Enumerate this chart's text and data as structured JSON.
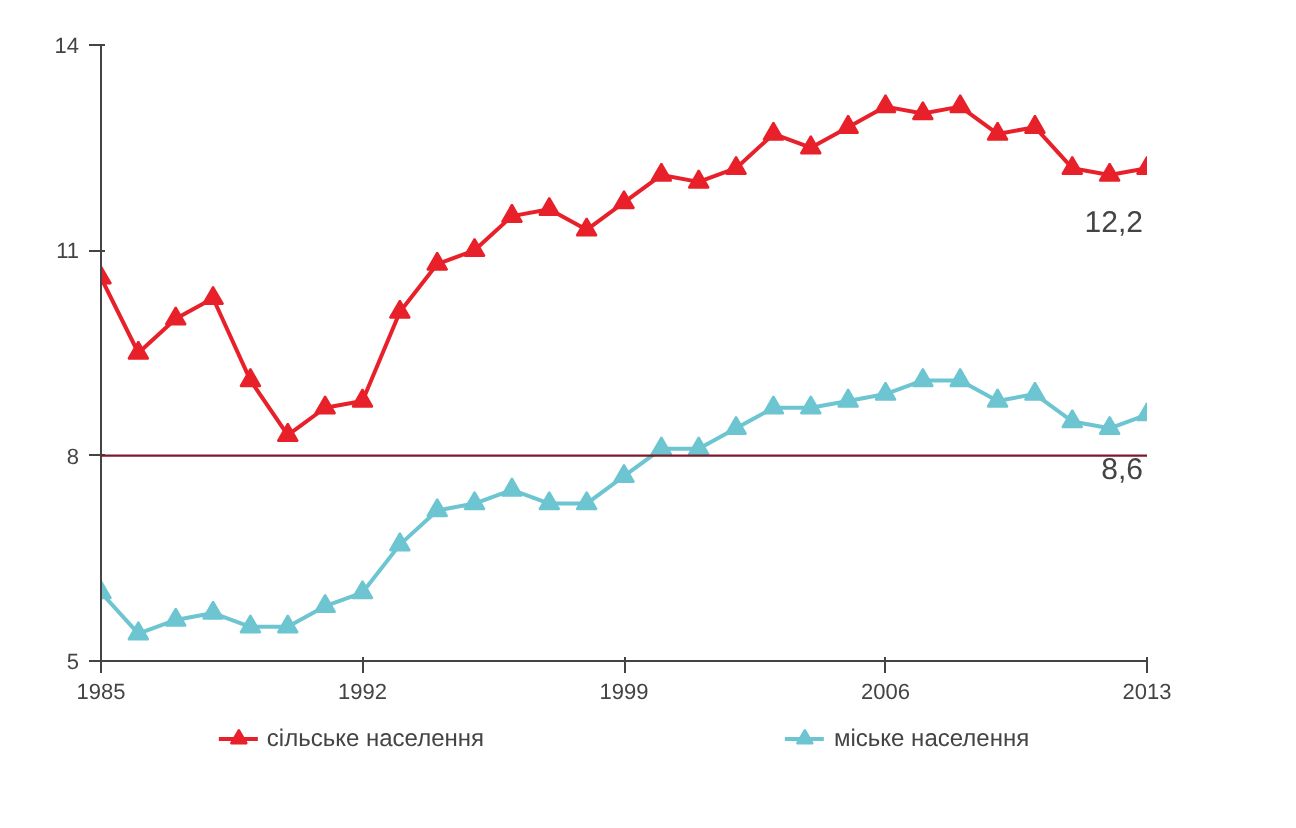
{
  "chart_data": {
    "type": "line",
    "x": [
      1985,
      1986,
      1987,
      1988,
      1989,
      1990,
      1991,
      1992,
      1993,
      1994,
      1995,
      1996,
      1997,
      1998,
      1999,
      2000,
      2001,
      2002,
      2003,
      2004,
      2005,
      2006,
      2007,
      2008,
      2009,
      2010,
      2011,
      2012,
      2013
    ],
    "series": [
      {
        "name": "сільське населення",
        "color": "#e8202a",
        "values": [
          10.6,
          9.5,
          10.0,
          10.3,
          9.1,
          8.3,
          8.7,
          8.8,
          10.1,
          10.8,
          11.0,
          11.5,
          11.6,
          11.3,
          11.7,
          12.1,
          12.0,
          12.2,
          12.7,
          12.5,
          12.8,
          13.1,
          13.0,
          13.1,
          12.7,
          12.8,
          12.2,
          12.1,
          12.2
        ]
      },
      {
        "name": "міське населення",
        "color": "#6cc5d1",
        "values": [
          6.0,
          5.4,
          5.6,
          5.7,
          5.5,
          5.5,
          5.8,
          6.0,
          6.7,
          7.2,
          7.3,
          7.5,
          7.3,
          7.3,
          7.7,
          8.1,
          8.1,
          8.4,
          8.7,
          8.7,
          8.8,
          8.9,
          9.1,
          9.1,
          8.8,
          8.9,
          8.5,
          8.4,
          8.6
        ]
      }
    ],
    "xlim": [
      1985,
      2013
    ],
    "xticks": [
      1985,
      1992,
      1999,
      2006,
      2013
    ],
    "ylim": [
      5,
      14
    ],
    "yticks": [
      5,
      8,
      11,
      14
    ],
    "ref_lines": [
      {
        "axis": "y",
        "value": 8,
        "color": "#7a1a2a"
      }
    ],
    "annotations": [
      {
        "text": "12,2",
        "x": 2013,
        "y": 12.2
      },
      {
        "text": "8,6",
        "x": 2013,
        "y": 8.6
      }
    ],
    "marker": "triangle",
    "line_style": "solid",
    "grid": false,
    "legend": "bottom"
  }
}
